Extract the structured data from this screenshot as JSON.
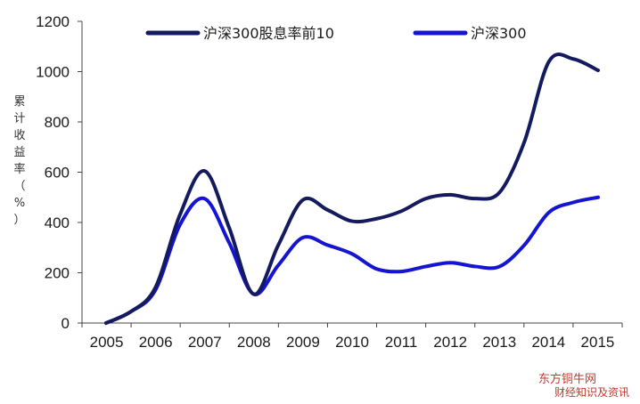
{
  "chart_data": {
    "type": "line",
    "categories": [
      "2005",
      "2006",
      "2007",
      "2008",
      "2009",
      "2010",
      "2011",
      "2012",
      "2013",
      "2014",
      "2015"
    ],
    "x": [
      2005,
      2005.5,
      2006,
      2006.5,
      2007,
      2007.5,
      2008,
      2008.5,
      2009,
      2009.5,
      2010,
      2010.5,
      2011,
      2011.5,
      2012,
      2012.5,
      2013,
      2013.5,
      2014,
      2014.5,
      2015
    ],
    "series": [
      {
        "name": "沪深300股息率前10",
        "color": "#141a5e",
        "values": [
          0,
          45,
          140,
          430,
          605,
          380,
          115,
          310,
          490,
          450,
          405,
          415,
          445,
          495,
          510,
          495,
          520,
          720,
          1040,
          1050,
          1005
        ]
      },
      {
        "name": "沪深300",
        "color": "#1414d2",
        "values": [
          0,
          45,
          130,
          390,
          495,
          320,
          115,
          230,
          340,
          310,
          275,
          215,
          205,
          225,
          240,
          225,
          225,
          310,
          440,
          480,
          500
        ]
      }
    ],
    "ylim": [
      0,
      1200
    ],
    "yticks": [
      0,
      200,
      400,
      600,
      800,
      1000,
      1200
    ],
    "ylabel": "累计收益率（%）",
    "xlabel": "",
    "title": "",
    "grid": false,
    "legend_position": "top"
  },
  "watermark": {
    "main": "东方铜牛网",
    "sub": "财经知识及资讯"
  }
}
